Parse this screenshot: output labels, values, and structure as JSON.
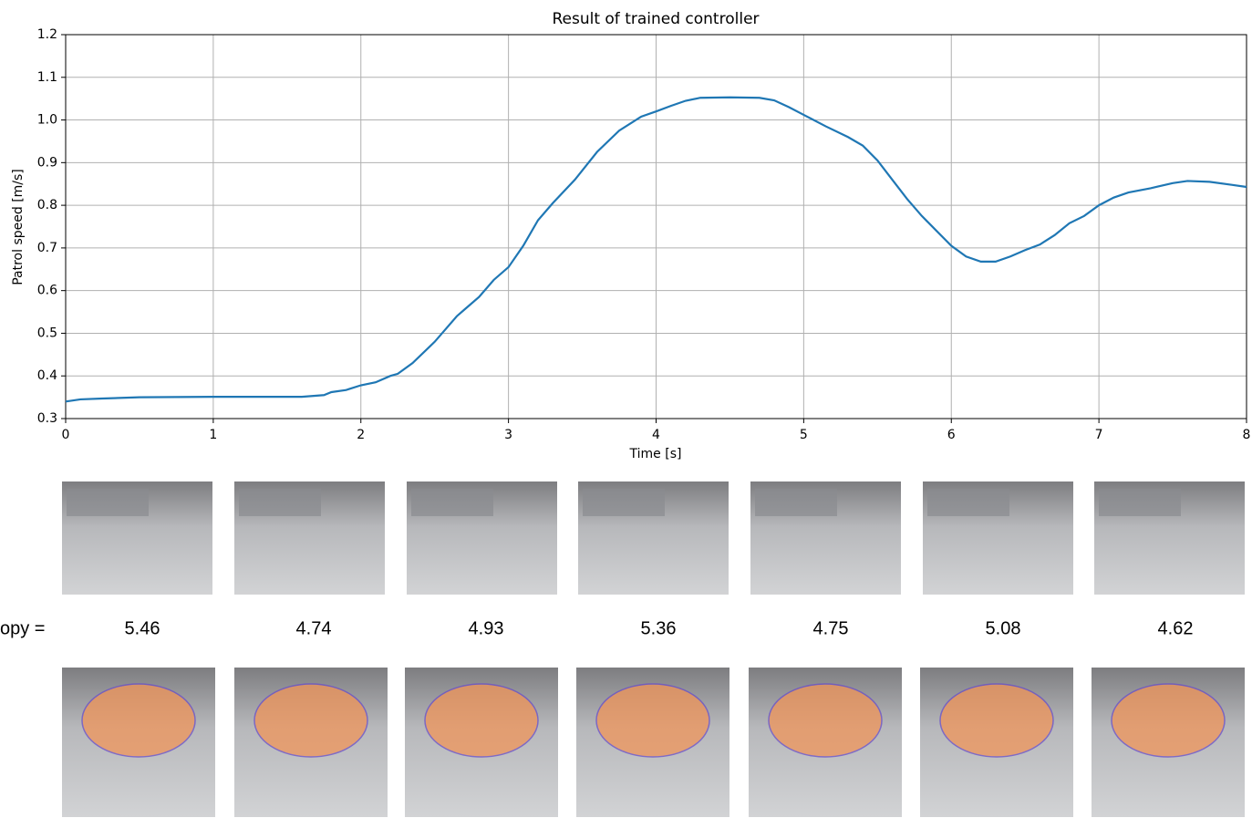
{
  "chart_data": {
    "type": "line",
    "title": "Result of trained controller",
    "xlabel": "Time [s]",
    "ylabel": "Patrol speed [m/s]",
    "x": [
      0,
      0.1,
      0.25,
      0.5,
      1,
      1.5,
      1.6,
      1.75,
      1.8,
      1.9,
      2.0,
      2.1,
      2.2,
      2.25,
      2.35,
      2.5,
      2.65,
      2.8,
      2.9,
      3.0,
      3.1,
      3.2,
      3.3,
      3.45,
      3.6,
      3.75,
      3.9,
      4.0,
      4.1,
      4.2,
      4.3,
      4.5,
      4.7,
      4.8,
      4.9,
      5.0,
      5.15,
      5.3,
      5.4,
      5.5,
      5.6,
      5.7,
      5.8,
      5.9,
      6.0,
      6.1,
      6.2,
      6.3,
      6.4,
      6.5,
      6.6,
      6.7,
      6.8,
      6.9,
      7.0,
      7.1,
      7.2,
      7.35,
      7.5,
      7.6,
      7.75,
      7.9,
      8.0
    ],
    "series": [
      {
        "color": "#1f77b4",
        "values": [
          0.34,
          0.345,
          0.347,
          0.35,
          0.351,
          0.351,
          0.351,
          0.355,
          0.362,
          0.367,
          0.378,
          0.385,
          0.4,
          0.405,
          0.43,
          0.48,
          0.54,
          0.585,
          0.625,
          0.655,
          0.705,
          0.765,
          0.805,
          0.86,
          0.925,
          0.975,
          1.008,
          1.02,
          1.033,
          1.045,
          1.052,
          1.053,
          1.052,
          1.046,
          1.03,
          1.012,
          0.985,
          0.96,
          0.94,
          0.905,
          0.86,
          0.815,
          0.775,
          0.74,
          0.705,
          0.68,
          0.668,
          0.668,
          0.68,
          0.695,
          0.708,
          0.73,
          0.758,
          0.775,
          0.8,
          0.818,
          0.83,
          0.84,
          0.852,
          0.857,
          0.855,
          0.848,
          0.843
        ]
      }
    ],
    "xlim": [
      0,
      8
    ],
    "xticks": [
      0,
      1,
      2,
      3,
      4,
      5,
      6,
      7,
      8
    ],
    "ylim": [
      0.3,
      1.2
    ],
    "yticks": [
      0.3,
      0.4,
      0.5,
      0.6,
      0.7,
      0.8,
      0.9,
      {
        "value": 1,
        "label": "1.0"
      },
      1.1,
      1.2
    ],
    "grid": true
  },
  "entropy_row": {
    "label": "opy =",
    "values": [
      5.46,
      4.74,
      4.93,
      5.36,
      4.75,
      5.08,
      4.62
    ]
  }
}
